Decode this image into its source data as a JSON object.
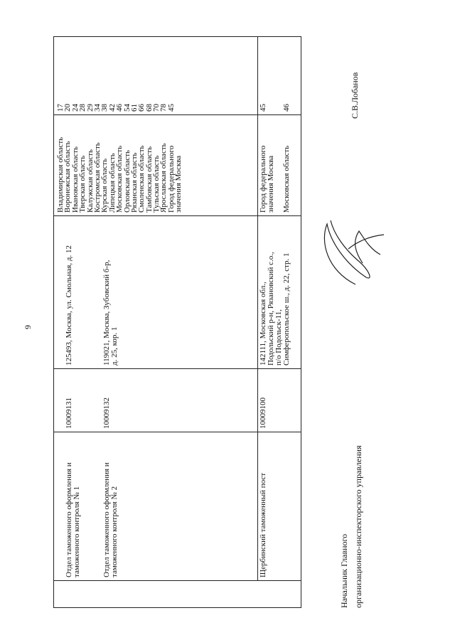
{
  "page_number": "9",
  "rows": [
    {
      "items": [
        {
          "name": [
            "Отдел таможенного оформления и",
            "таможенного контроля № 1"
          ],
          "code": "10009131",
          "address": [
            "125493, Москва, ул. Смольная, д. 12"
          ]
        },
        {
          "name": [
            "Отдел таможенного оформления и",
            "таможенного контроля № 2"
          ],
          "code": "10009132",
          "address": [
            "119021, Москва, Зубовский б-р,",
            "д. 25, кор. 1"
          ]
        }
      ],
      "regions": [
        {
          "name": "Владимирская область",
          "code": "17"
        },
        {
          "name": "Воронежская область",
          "code": "20"
        },
        {
          "name": "Ивановская область",
          "code": "24"
        },
        {
          "name": "Тверская область",
          "code": "28"
        },
        {
          "name": "Калужская область",
          "code": "29"
        },
        {
          "name": "Костромская область",
          "code": "34"
        },
        {
          "name": "Курская область",
          "code": "38"
        },
        {
          "name": "Липецкая область",
          "code": "42"
        },
        {
          "name": "Московская область",
          "code": "46"
        },
        {
          "name": "Орловская область",
          "code": "54"
        },
        {
          "name": "Рязанская область",
          "code": "61"
        },
        {
          "name": "Смоленская область",
          "code": "66"
        },
        {
          "name": "Тамбовская область",
          "code": "68"
        },
        {
          "name": "Тульская область",
          "code": "70"
        },
        {
          "name": "Ярославская область",
          "code": "78"
        },
        {
          "name": "Город федерального",
          "code": "45"
        },
        {
          "name": "значения Москва",
          "code": ""
        }
      ]
    },
    {
      "items": [
        {
          "name": [
            "Щербинский таможенный пост"
          ],
          "code": "10009100",
          "address": [
            "142111, Московская обл.,",
            "Подольский р-н, Рязановский с.о.,",
            "п/о Подольск-11,",
            "Симферопольское ш., д. 22, стр. 1"
          ]
        }
      ],
      "regions": [
        {
          "name": "Город федерального",
          "code": "45"
        },
        {
          "name": "значения Москва",
          "code": ""
        },
        {
          "name": "",
          "code": ""
        },
        {
          "name": "Московская область",
          "code": "46"
        }
      ]
    }
  ],
  "footer": {
    "title_line1": "Начальник Главного",
    "title_line2": "организационно-инспекторского управления",
    "signatory": "С.В.Лобанов"
  }
}
